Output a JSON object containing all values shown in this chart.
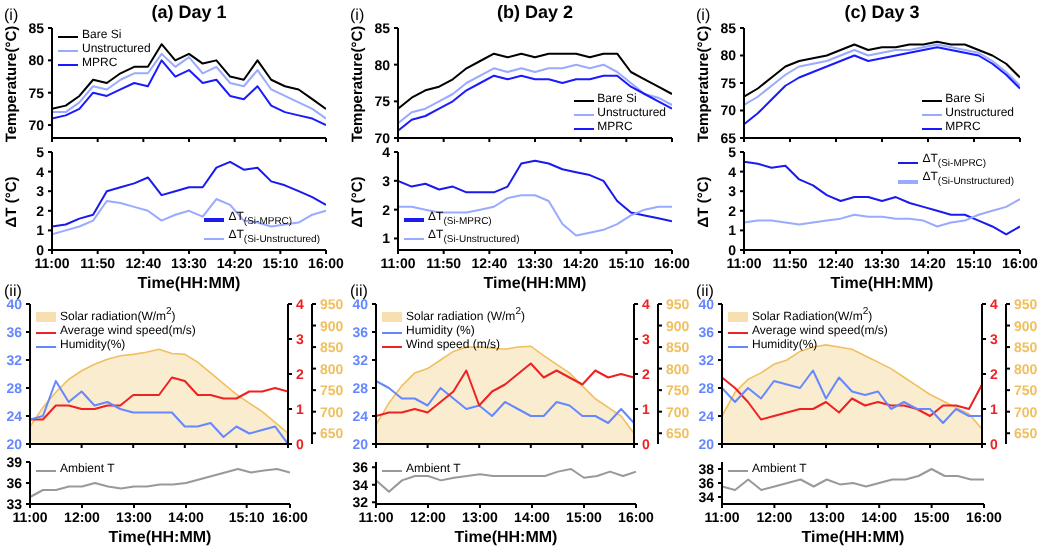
{
  "chart_data": [
    {
      "type": "line",
      "title": "(a) Day 1",
      "ylabel": "Temperature(°C)",
      "annotations": [
        "(i)"
      ],
      "legend": "top left",
      "tick_labels": "y",
      "x": [
        11,
        11.25,
        11.5,
        11.75,
        12,
        12.25,
        12.5,
        12.75,
        13,
        13.25,
        13.5,
        13.75,
        14,
        14.25,
        14.5,
        14.75,
        15,
        15.25,
        15.5,
        15.75,
        16
      ],
      "xlim": [
        11,
        16
      ],
      "xticks": [
        {
          "value": 11,
          "label": null
        },
        {
          "value": 11.8333,
          "label": null
        },
        {
          "value": 12.6667,
          "label": null
        },
        {
          "value": 13.5,
          "label": null
        },
        {
          "value": 14.3333,
          "label": null
        },
        {
          "value": 15.1667,
          "label": null
        },
        {
          "value": 16,
          "label": null
        }
      ],
      "ylim": [
        68,
        85
      ],
      "yticks": [
        70,
        75,
        80,
        85
      ],
      "series": [
        {
          "name": "Bare Si",
          "color": "#000000",
          "values": [
            72.5,
            73,
            74.5,
            77,
            76.5,
            78,
            79,
            79,
            82.5,
            80,
            81,
            79.5,
            80,
            77.5,
            77,
            80,
            77,
            76,
            75.5,
            74,
            72.5
          ]
        },
        {
          "name": "Unstructured",
          "color": "#99aaff",
          "values": [
            72,
            72,
            73.5,
            76,
            75.5,
            77,
            78,
            78,
            81,
            79,
            80.5,
            78,
            79,
            76.5,
            76,
            78.5,
            75.5,
            74.5,
            73.5,
            72.5,
            71
          ]
        },
        {
          "name": "MPRC",
          "color": "#1a1aff",
          "values": [
            71,
            71.5,
            72.5,
            75,
            74.5,
            75.5,
            76.5,
            76,
            80,
            77.5,
            78.5,
            76.5,
            77,
            74.5,
            74,
            76,
            73,
            72,
            71.5,
            71,
            70
          ]
        }
      ]
    },
    {
      "type": "line",
      "ylabel": "ΔT (°C)",
      "xlabel": "Time(HH:MM)",
      "legend": "bottom right",
      "x": [
        11,
        11.25,
        11.5,
        11.75,
        12,
        12.25,
        12.5,
        12.75,
        13,
        13.25,
        13.5,
        13.75,
        14,
        14.25,
        14.5,
        14.75,
        15,
        15.25,
        15.5,
        15.75,
        16
      ],
      "xlim": [
        11,
        16
      ],
      "xticks": [
        {
          "value": 11,
          "label": "11:00"
        },
        {
          "value": 11.8333,
          "label": "11:50"
        },
        {
          "value": 12.6667,
          "label": "12:40"
        },
        {
          "value": 13.5,
          "label": "13:30"
        },
        {
          "value": 14.3333,
          "label": "14:20"
        },
        {
          "value": 15.1667,
          "label": "15:10"
        },
        {
          "value": 16,
          "label": "16:00"
        }
      ],
      "ylim": [
        0,
        5
      ],
      "yticks": [
        0,
        1,
        2,
        3,
        4,
        5
      ],
      "series": [
        {
          "name": "ΔT$_{(Si-MPRC)}$",
          "color": "#1a1aee",
          "values": [
            1.2,
            1.3,
            1.6,
            1.8,
            3,
            3.2,
            3.4,
            3.7,
            2.8,
            3,
            3.2,
            3.2,
            4.2,
            4.5,
            4.1,
            4.2,
            3.5,
            3.3,
            3,
            2.7,
            2.3
          ]
        },
        {
          "name": "ΔT$_{(Si-Unstructured)}$",
          "color": "#99aaff",
          "values": [
            0.8,
            1,
            1.2,
            1.5,
            2.5,
            2.4,
            2.2,
            2,
            1.5,
            1.8,
            2,
            1.7,
            2.6,
            2.3,
            1.5,
            1.4,
            1.2,
            1.3,
            1.4,
            1.8,
            2
          ]
        }
      ]
    },
    {
      "type": "line",
      "annotations": [
        "(ii)"
      ],
      "legend": "top left",
      "tick_labels": "y",
      "x": [
        11,
        11.25,
        11.5,
        11.75,
        12,
        12.25,
        12.5,
        12.75,
        13,
        13.25,
        13.5,
        13.75,
        14,
        14.25,
        14.5,
        14.75,
        15,
        15.25,
        15.5,
        15.75,
        16
      ],
      "xlim": [
        11,
        16
      ],
      "xticks": [
        {
          "value": 11,
          "label": null
        },
        {
          "value": 12,
          "label": null
        },
        {
          "value": 13,
          "label": null
        },
        {
          "value": 14,
          "label": null
        },
        {
          "value": 15,
          "label": null
        },
        {
          "value": 16,
          "label": null
        }
      ],
      "ylim": [
        20,
        40
      ],
      "yticks": [
        20,
        24,
        28,
        32,
        36,
        40
      ],
      "y2lim": [
        0,
        4
      ],
      "y2ticks": [
        0,
        1,
        2,
        3,
        4
      ],
      "y3lim": [
        625,
        950
      ],
      "y3ticks": [
        650,
        700,
        750,
        800,
        850,
        900,
        950
      ],
      "series": [
        {
          "name": "Solar radiation(W/m$^{2}$)",
          "type": "area",
          "axis": "y3",
          "color": "#f0c060",
          "values": [
            665,
            710,
            745,
            775,
            795,
            810,
            822,
            830,
            833,
            838,
            845,
            835,
            833,
            815,
            790,
            765,
            740,
            720,
            700,
            675,
            650
          ]
        },
        {
          "name": "Average wind speed(m/s)",
          "axis": "y2",
          "color": "#ee2222",
          "values": [
            0.7,
            0.7,
            1.1,
            1.1,
            1,
            1,
            1.1,
            1.1,
            1.4,
            1.4,
            1.4,
            1.9,
            1.8,
            1.4,
            1.4,
            1.3,
            1.3,
            1.5,
            1.5,
            1.6,
            1.5
          ]
        },
        {
          "name": "Humidity(%)",
          "color": "#6688ff",
          "values": [
            23.5,
            24,
            29,
            26,
            27.5,
            25.5,
            26,
            25,
            24.5,
            24.5,
            24.5,
            24.5,
            22.5,
            22.5,
            23,
            21,
            22.5,
            21.5,
            22,
            22.5,
            20
          ]
        }
      ]
    },
    {
      "type": "line",
      "xlabel": "Time(HH:MM)",
      "legend": "top left",
      "x": [
        11,
        11.25,
        11.5,
        11.75,
        12,
        12.25,
        12.5,
        12.75,
        13,
        13.25,
        13.5,
        13.75,
        14,
        14.25,
        14.5,
        14.75,
        15,
        15.25,
        15.5,
        15.75,
        16
      ],
      "xlim": [
        11,
        16
      ],
      "xticks": [
        {
          "value": 11,
          "label": "11:00"
        },
        {
          "value": 12,
          "label": "12:00"
        },
        {
          "value": 13,
          "label": "13:00"
        },
        {
          "value": 14,
          "label": "14:00"
        },
        {
          "value": 15.1667,
          "label": "15:10"
        },
        {
          "value": 16,
          "label": "16:00"
        }
      ],
      "ylim": [
        33,
        39
      ],
      "yticks": [
        33,
        36,
        39
      ],
      "series": [
        {
          "name": "Ambient T",
          "color": "#999999",
          "values": [
            34,
            35,
            35,
            35.5,
            35.5,
            36,
            35.5,
            35.2,
            35.5,
            35.5,
            35.8,
            35.8,
            36,
            36.5,
            37,
            37.5,
            38,
            37.5,
            37.8,
            38,
            37.5
          ]
        }
      ]
    },
    {
      "type": "line",
      "title": "(b) Day 2",
      "ylabel": "Temperature(°C)",
      "annotations": [
        "(i)"
      ],
      "legend": "bottom right",
      "tick_labels": "y",
      "x": [
        11,
        11.25,
        11.5,
        11.75,
        12,
        12.25,
        12.5,
        12.75,
        13,
        13.25,
        13.5,
        13.75,
        14,
        14.25,
        14.5,
        14.75,
        15,
        15.25,
        15.5,
        15.75,
        16
      ],
      "xlim": [
        11,
        16
      ],
      "xticks": [
        {
          "value": 11,
          "label": null
        },
        {
          "value": 11.8333,
          "label": null
        },
        {
          "value": 12.6667,
          "label": null
        },
        {
          "value": 13.5,
          "label": null
        },
        {
          "value": 14.3333,
          "label": null
        },
        {
          "value": 15.1667,
          "label": null
        },
        {
          "value": 16,
          "label": null
        }
      ],
      "ylim": [
        70,
        85
      ],
      "yticks": [
        70,
        75,
        80,
        85
      ],
      "series": [
        {
          "name": "Bare Si",
          "color": "#000000",
          "values": [
            74,
            75.5,
            76.5,
            77,
            78,
            79.5,
            80.5,
            81.5,
            81,
            81.5,
            81,
            81.5,
            81.5,
            81.5,
            81,
            81.5,
            81.5,
            79,
            78,
            77,
            76
          ]
        },
        {
          "name": "Unstructured",
          "color": "#99aaff",
          "values": [
            72,
            73.5,
            74,
            75,
            76,
            77.5,
            78.5,
            79.5,
            79,
            79.5,
            79,
            79.5,
            79.5,
            80,
            79.5,
            80,
            79,
            77.5,
            76,
            75.5,
            74.5
          ]
        },
        {
          "name": "MPRC",
          "color": "#1a1aff",
          "values": [
            71,
            72.5,
            73,
            74,
            75,
            76.5,
            77.5,
            78.5,
            78,
            78.5,
            78,
            78,
            77.5,
            78,
            78,
            78.5,
            78.5,
            77,
            76,
            75,
            74
          ]
        }
      ]
    },
    {
      "type": "line",
      "ylabel": "ΔT (°C)",
      "xlabel": "Time(HH:MM)",
      "legend": "bottom left",
      "x": [
        11,
        11.25,
        11.5,
        11.75,
        12,
        12.25,
        12.5,
        12.75,
        13,
        13.25,
        13.5,
        13.75,
        14,
        14.25,
        14.5,
        14.75,
        15,
        15.25,
        15.5,
        15.75,
        16
      ],
      "xlim": [
        11,
        16
      ],
      "xticks": [
        {
          "value": 11,
          "label": "11:00"
        },
        {
          "value": 11.8333,
          "label": "11:50"
        },
        {
          "value": 12.6667,
          "label": "12:40"
        },
        {
          "value": 13.5,
          "label": "13:30"
        },
        {
          "value": 14.3333,
          "label": "14:20"
        },
        {
          "value": 15.1667,
          "label": "15:10"
        },
        {
          "value": 16,
          "label": "16:00"
        }
      ],
      "ylim": [
        0.6,
        4
      ],
      "yticks": [
        1,
        2,
        3,
        4
      ],
      "series": [
        {
          "name": "ΔT$_{(Si-MPRC)}$",
          "color": "#1a1aee",
          "values": [
            3,
            2.8,
            2.9,
            2.7,
            2.8,
            2.6,
            2.6,
            2.6,
            2.8,
            3.6,
            3.7,
            3.6,
            3.4,
            3.3,
            3.2,
            3,
            2.3,
            1.9,
            1.8,
            1.7,
            1.6
          ]
        },
        {
          "name": "ΔT$_{(Si-Unstructured)}$",
          "color": "#99aaff",
          "values": [
            2.1,
            2.1,
            2,
            1.9,
            1.9,
            1.9,
            2,
            2.1,
            2.4,
            2.5,
            2.5,
            2.3,
            1.5,
            1.1,
            1.2,
            1.3,
            1.5,
            1.8,
            2,
            2.1,
            2.1
          ]
        }
      ]
    },
    {
      "type": "line",
      "annotations": [
        "(ii)"
      ],
      "legend": "top left",
      "tick_labels": "y",
      "x": [
        11,
        11.25,
        11.5,
        11.75,
        12,
        12.25,
        12.5,
        12.75,
        13,
        13.25,
        13.5,
        13.75,
        14,
        14.25,
        14.5,
        14.75,
        15,
        15.25,
        15.5,
        15.75,
        16
      ],
      "xlim": [
        11,
        16
      ],
      "xticks": [
        {
          "value": 11,
          "label": null
        },
        {
          "value": 12,
          "label": null
        },
        {
          "value": 13,
          "label": null
        },
        {
          "value": 14,
          "label": null
        },
        {
          "value": 15,
          "label": null
        },
        {
          "value": 16,
          "label": null
        }
      ],
      "ylim": [
        20,
        40
      ],
      "yticks": [
        20,
        24,
        28,
        32,
        36,
        40
      ],
      "y2lim": [
        0,
        4
      ],
      "y2ticks": [
        0,
        1,
        2,
        3,
        4
      ],
      "y3lim": [
        625,
        950
      ],
      "y3ticks": [
        650,
        700,
        750,
        800,
        850,
        900,
        950
      ],
      "series": [
        {
          "name": "Solar radiation (W/m$^{2}$)",
          "type": "area",
          "axis": "y3",
          "color": "#f0c060",
          "values": [
            670,
            720,
            760,
            790,
            800,
            820,
            840,
            850,
            850,
            848,
            845,
            850,
            852,
            830,
            810,
            790,
            760,
            730,
            710,
            690,
            650
          ]
        },
        {
          "name": "Humidity (%)",
          "color": "#6688ff",
          "values": [
            29,
            28,
            26.5,
            26.5,
            25.5,
            28,
            26.5,
            25,
            25.5,
            24,
            26,
            25,
            24,
            24,
            26,
            25.5,
            24,
            24,
            23,
            25,
            23
          ]
        },
        {
          "name": "Wind speed (m/s)",
          "axis": "y2",
          "color": "#ee2222",
          "values": [
            0.8,
            0.9,
            0.9,
            1,
            0.9,
            1.2,
            1.5,
            2.1,
            1.1,
            1.5,
            1.7,
            2,
            2.3,
            1.9,
            2.1,
            1.9,
            1.7,
            2.1,
            1.9,
            2,
            1.9
          ]
        }
      ]
    },
    {
      "type": "line",
      "xlabel": "Time(HH:MM)",
      "legend": "top left",
      "x": [
        11,
        11.25,
        11.5,
        11.75,
        12,
        12.25,
        12.5,
        12.75,
        13,
        13.25,
        13.5,
        13.75,
        14,
        14.25,
        14.5,
        14.75,
        15,
        15.25,
        15.5,
        15.75,
        16
      ],
      "xlim": [
        11,
        16
      ],
      "xticks": [
        {
          "value": 11,
          "label": "11:00"
        },
        {
          "value": 12,
          "label": "12:00"
        },
        {
          "value": 13,
          "label": "13:00"
        },
        {
          "value": 14,
          "label": "14:00"
        },
        {
          "value": 15,
          "label": "15:00"
        },
        {
          "value": 16,
          "label": "16:00"
        }
      ],
      "ylim": [
        31.8,
        36.6
      ],
      "yticks": [
        32,
        34,
        36
      ],
      "series": [
        {
          "name": "Ambient T",
          "color": "#999999",
          "values": [
            34.5,
            33.2,
            34.5,
            35,
            35,
            34.5,
            34.8,
            35,
            35.2,
            35,
            35,
            35,
            35,
            35,
            35.5,
            35.8,
            34.8,
            35,
            35.5,
            35,
            35.5
          ]
        }
      ]
    },
    {
      "type": "line",
      "title": "(c) Day 3",
      "ylabel": "Temperature(°C)",
      "annotations": [
        "(i)"
      ],
      "legend": "bottom right",
      "tick_labels": "y",
      "x": [
        11,
        11.25,
        11.5,
        11.75,
        12,
        12.25,
        12.5,
        12.75,
        13,
        13.25,
        13.5,
        13.75,
        14,
        14.25,
        14.5,
        14.75,
        15,
        15.25,
        15.5,
        15.75,
        16
      ],
      "xlim": [
        11,
        16
      ],
      "xticks": [
        {
          "value": 11,
          "label": null
        },
        {
          "value": 11.8333,
          "label": null
        },
        {
          "value": 12.6667,
          "label": null
        },
        {
          "value": 13.5,
          "label": null
        },
        {
          "value": 14.3333,
          "label": null
        },
        {
          "value": 15.1667,
          "label": null
        },
        {
          "value": 16,
          "label": null
        }
      ],
      "ylim": [
        65,
        85
      ],
      "yticks": [
        65,
        70,
        75,
        80,
        85
      ],
      "series": [
        {
          "name": "Bare Si",
          "color": "#000000",
          "values": [
            72.5,
            74,
            76,
            78,
            79,
            79.5,
            80,
            81,
            82,
            81,
            81.5,
            81.5,
            82,
            82,
            82.5,
            82,
            82,
            81,
            80,
            78.5,
            76
          ]
        },
        {
          "name": "Unstructured",
          "color": "#99aaff",
          "values": [
            71,
            72.5,
            74.5,
            76.5,
            78,
            78.5,
            79,
            80,
            81,
            80,
            80.5,
            81,
            81,
            81.5,
            82,
            81.5,
            81,
            80.5,
            79,
            77,
            74.5
          ]
        },
        {
          "name": "MPRC",
          "color": "#1a1aff",
          "values": [
            67.5,
            69.5,
            72,
            74.5,
            76,
            77,
            78,
            79,
            80,
            79,
            79.5,
            80,
            80.5,
            81,
            81.5,
            81,
            80.5,
            80,
            78.5,
            76.5,
            74
          ]
        }
      ]
    },
    {
      "type": "line",
      "ylabel": "ΔT (°C)",
      "xlabel": "Time(HH:MM)",
      "legend": "top right",
      "x": [
        11,
        11.25,
        11.5,
        11.75,
        12,
        12.25,
        12.5,
        12.75,
        13,
        13.25,
        13.5,
        13.75,
        14,
        14.25,
        14.5,
        14.75,
        15,
        15.25,
        15.5,
        15.75,
        16
      ],
      "xlim": [
        11,
        16
      ],
      "xticks": [
        {
          "value": 11,
          "label": "11:00"
        },
        {
          "value": 11.8333,
          "label": "11:50"
        },
        {
          "value": 12.6667,
          "label": "12:40"
        },
        {
          "value": 13.5,
          "label": "13:30"
        },
        {
          "value": 14.3333,
          "label": "14:20"
        },
        {
          "value": 15.1667,
          "label": "15:10"
        },
        {
          "value": 16,
          "label": "16:00"
        }
      ],
      "ylim": [
        0,
        5
      ],
      "yticks": [
        0,
        1,
        2,
        3,
        4,
        5
      ],
      "series": [
        {
          "name": "ΔT$_{(Si-MPRC)}$",
          "color": "#1a1aee",
          "values": [
            4.5,
            4.4,
            4.2,
            4.3,
            3.6,
            3.3,
            2.8,
            2.5,
            2.7,
            2.7,
            2.5,
            2.7,
            2.4,
            2.2,
            2,
            1.8,
            1.8,
            1.5,
            1.2,
            0.8,
            1.2
          ]
        },
        {
          "name": "ΔT$_{(Si-Unstructured)}$",
          "color": "#99aaff",
          "values": [
            1.4,
            1.5,
            1.5,
            1.4,
            1.3,
            1.4,
            1.5,
            1.6,
            1.8,
            1.7,
            1.7,
            1.6,
            1.6,
            1.5,
            1.2,
            1.4,
            1.5,
            1.8,
            2,
            2.2,
            2.6
          ]
        }
      ]
    },
    {
      "type": "line",
      "annotations": [
        "(ii)"
      ],
      "legend": "top left",
      "tick_labels": "y",
      "x": [
        11,
        11.25,
        11.5,
        11.75,
        12,
        12.25,
        12.5,
        12.75,
        13,
        13.25,
        13.5,
        13.75,
        14,
        14.25,
        14.5,
        14.75,
        15,
        15.25,
        15.5,
        15.75,
        16
      ],
      "xlim": [
        11,
        16
      ],
      "xticks": [
        {
          "value": 11,
          "label": null
        },
        {
          "value": 12,
          "label": null
        },
        {
          "value": 13,
          "label": null
        },
        {
          "value": 14,
          "label": null
        },
        {
          "value": 15,
          "label": null
        },
        {
          "value": 16,
          "label": null
        }
      ],
      "ylim": [
        20,
        40
      ],
      "yticks": [
        20,
        24,
        28,
        32,
        36,
        40
      ],
      "y2lim": [
        0,
        4
      ],
      "y2ticks": [
        0,
        1,
        2,
        3,
        4
      ],
      "y3lim": [
        625,
        950
      ],
      "y3ticks": [
        650,
        700,
        750,
        800,
        850,
        900,
        950
      ],
      "series": [
        {
          "name": "Solar Radiation(W/m$^{2}$)",
          "type": "area",
          "axis": "y3",
          "color": "#f0c060",
          "values": [
            690,
            745,
            775,
            790,
            810,
            820,
            840,
            850,
            855,
            850,
            845,
            830,
            815,
            800,
            780,
            760,
            740,
            725,
            710,
            695,
            660
          ]
        },
        {
          "name": "Average wind speed(m/s)",
          "axis": "y2",
          "color": "#ee2222",
          "values": [
            1.9,
            1.6,
            1.2,
            0.7,
            0.8,
            0.9,
            1,
            1,
            1.2,
            0.9,
            1.3,
            1.1,
            1.2,
            1.1,
            1.1,
            1,
            0.8,
            1.1,
            1.1,
            1,
            1.7
          ]
        },
        {
          "name": "Humidity(%)",
          "color": "#6688ff",
          "values": [
            28,
            26,
            28,
            26.5,
            29,
            28.5,
            28,
            30.5,
            26.5,
            29.5,
            27.5,
            27,
            27.5,
            25,
            26,
            25,
            25,
            23,
            25,
            24,
            24
          ]
        }
      ]
    },
    {
      "type": "line",
      "xlabel": "Time(HH:MM)",
      "legend": "top left",
      "x": [
        11,
        11.25,
        11.5,
        11.75,
        12,
        12.25,
        12.5,
        12.75,
        13,
        13.25,
        13.5,
        13.75,
        14,
        14.25,
        14.5,
        14.75,
        15,
        15.25,
        15.5,
        15.75,
        16
      ],
      "xlim": [
        11,
        16
      ],
      "xticks": [
        {
          "value": 11,
          "label": "11:00"
        },
        {
          "value": 12,
          "label": "12:00"
        },
        {
          "value": 13,
          "label": "13:00"
        },
        {
          "value": 14,
          "label": "14:00"
        },
        {
          "value": 15,
          "label": "15:00"
        },
        {
          "value": 16,
          "label": "16:00"
        }
      ],
      "ylim": [
        33,
        39
      ],
      "yticks": [
        34,
        36,
        38
      ],
      "series": [
        {
          "name": "Ambient T",
          "color": "#999999",
          "values": [
            35.5,
            35,
            36.5,
            35,
            35.5,
            36,
            36.5,
            35.5,
            36.5,
            35.8,
            36,
            35.5,
            36,
            36.5,
            36.5,
            37,
            38,
            37,
            37,
            36.5,
            36.5
          ]
        }
      ]
    }
  ]
}
